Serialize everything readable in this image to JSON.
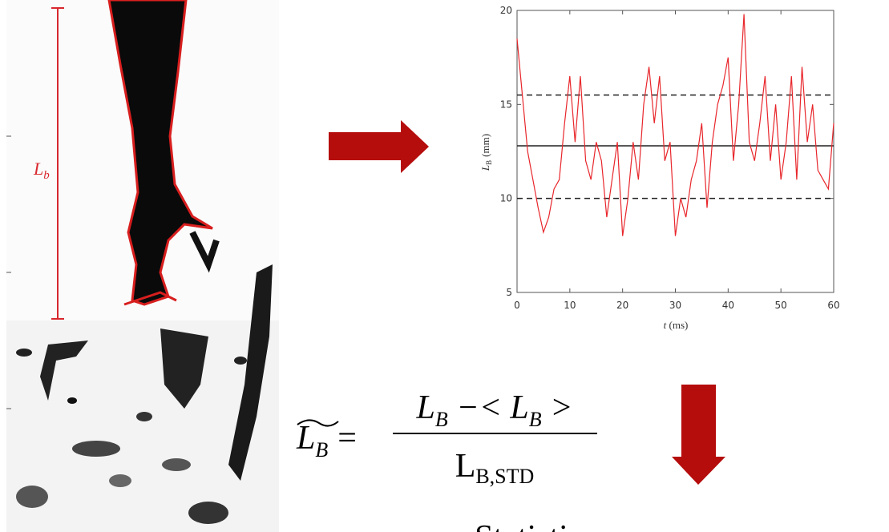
{
  "image": {
    "label": "L",
    "label_sub": "b"
  },
  "chart_data": {
    "type": "line",
    "x": [
      0,
      1,
      2,
      3,
      4,
      5,
      6,
      7,
      8,
      9,
      10,
      11,
      12,
      13,
      14,
      15,
      16,
      17,
      18,
      19,
      20,
      21,
      22,
      23,
      24,
      25,
      26,
      27,
      28,
      29,
      30,
      31,
      32,
      33,
      34,
      35,
      36,
      37,
      38,
      39,
      40,
      41,
      42,
      43,
      44,
      45,
      46,
      47,
      48,
      49,
      50,
      51,
      52,
      53,
      54,
      55,
      56,
      57,
      58,
      59,
      60
    ],
    "values": [
      18.5,
      15.5,
      12.5,
      11,
      9.5,
      8.2,
      9,
      10.5,
      11,
      14,
      16.5,
      13,
      16.5,
      12,
      11,
      13,
      12,
      9,
      11,
      13,
      8,
      10,
      13,
      11,
      15,
      17,
      14,
      16.5,
      12,
      13,
      8,
      10,
      9,
      11,
      12,
      14,
      9.5,
      13,
      15,
      16,
      17.5,
      12,
      15,
      19.8,
      13,
      12,
      14,
      16.5,
      12,
      15,
      11,
      13,
      16.5,
      11,
      17,
      13,
      15,
      11.5,
      11,
      10.5,
      14
    ],
    "color": "#e8262b",
    "xlim": [
      0,
      60
    ],
    "xticks": [
      0,
      10,
      20,
      30,
      40,
      50,
      60
    ],
    "ylim": [
      5,
      20
    ],
    "yticks": [
      5,
      10,
      15,
      20
    ],
    "xlabel": "t",
    "xlabel_unit": "(ms)",
    "ylabel": "L",
    "ylabel_sub": "B",
    "ylabel_unit": "(mm)",
    "reference_lines": [
      {
        "value": 12.8,
        "dashed": false
      },
      {
        "value": 15.5,
        "dashed": true
      },
      {
        "value": 10.0,
        "dashed": true
      }
    ]
  },
  "formula": {
    "lhs": "L",
    "lhs_sub": "B",
    "equals": "=",
    "numerator": [
      "L",
      "B",
      " −< L",
      "B",
      " >"
    ],
    "denominator": "L",
    "denominator_sub": "B,STD"
  },
  "caption": "Statistics"
}
